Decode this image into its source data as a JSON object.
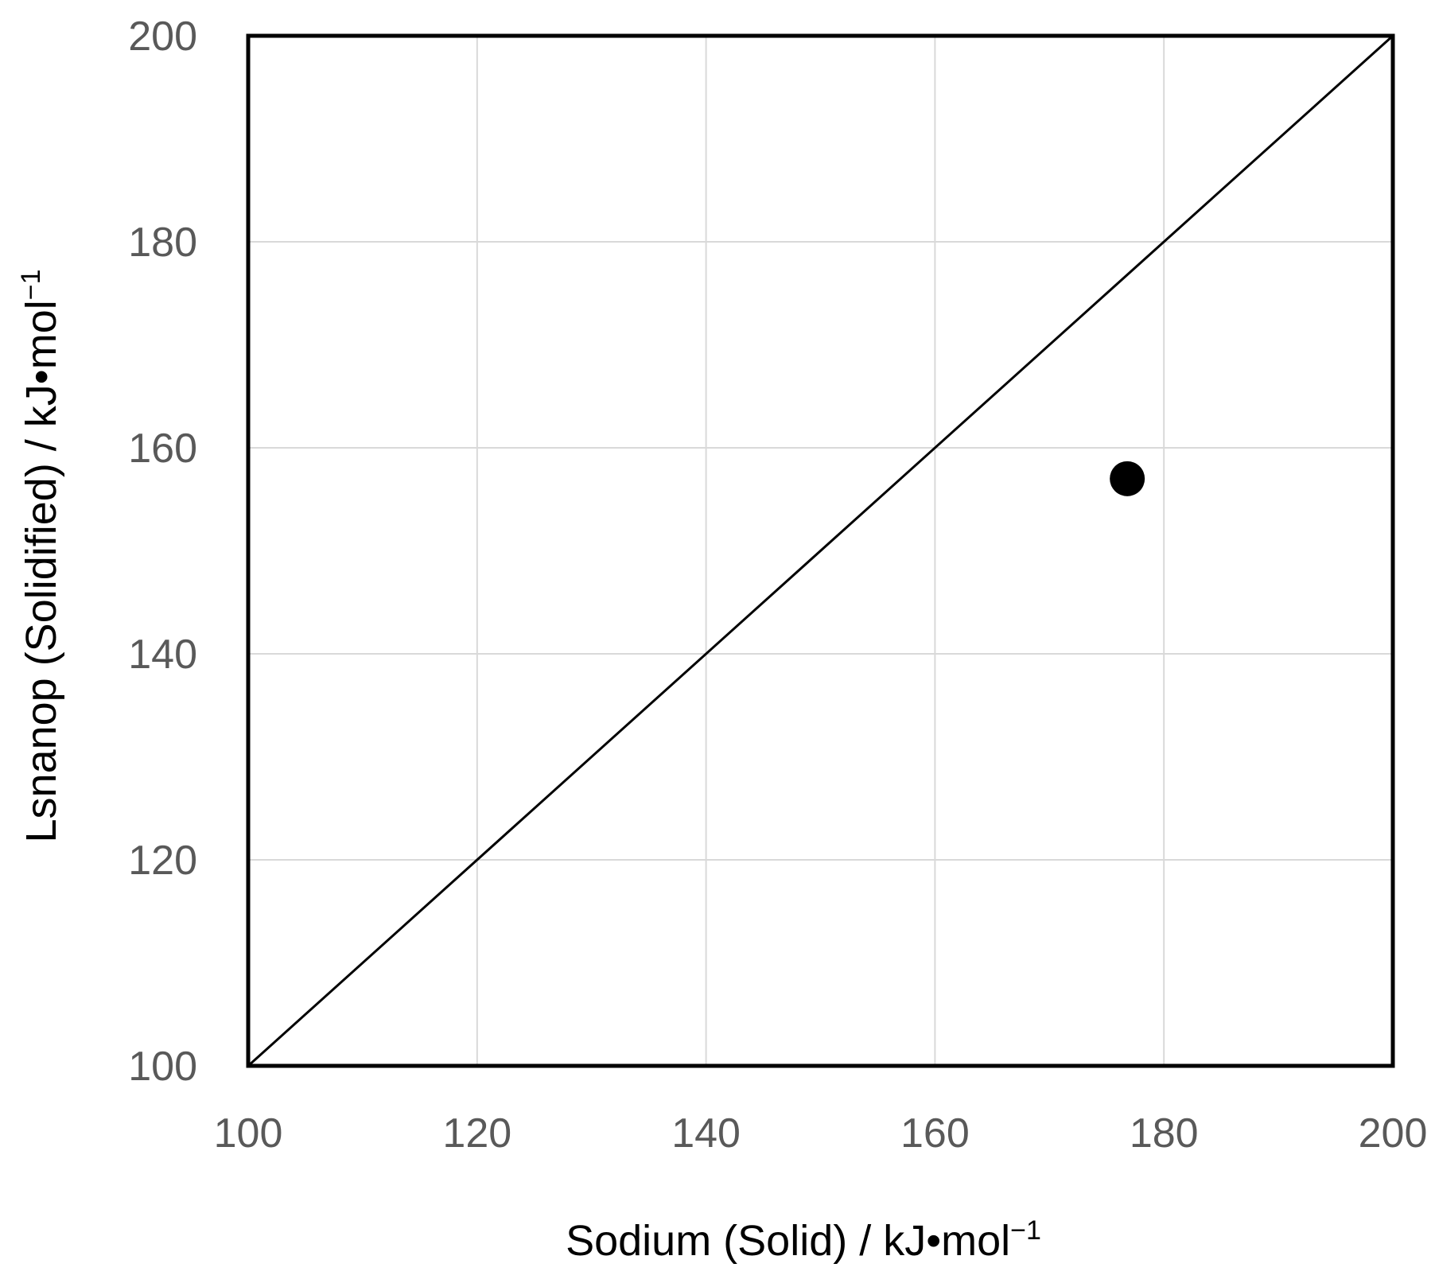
{
  "chart_data": {
    "type": "scatter",
    "title": "",
    "xlabel": "Sodium (Solid) / kJ•mol",
    "xlabel_superscript": "−1",
    "ylabel": "Lsnanop (Solidified) / kJ•mol",
    "ylabel_superscript": "−1",
    "xlim": [
      100,
      200
    ],
    "ylim": [
      100,
      200
    ],
    "x_ticks": [
      "100",
      "120",
      "140",
      "160",
      "180",
      "200"
    ],
    "y_ticks": [
      "100",
      "120",
      "140",
      "160",
      "180",
      "200"
    ],
    "grid": true,
    "legend": "none",
    "reference_line": {
      "type": "y=x",
      "points": [
        [
          100,
          100
        ],
        [
          200,
          200
        ]
      ]
    },
    "series": [
      {
        "marker": "filled-circle",
        "color": "#000000",
        "points": [
          [
            176.8,
            157.0
          ]
        ]
      }
    ]
  },
  "colors": {
    "grid": "#d9d9d9",
    "frame": "#000000",
    "tick_label": "#595959",
    "marker": "#000000"
  }
}
